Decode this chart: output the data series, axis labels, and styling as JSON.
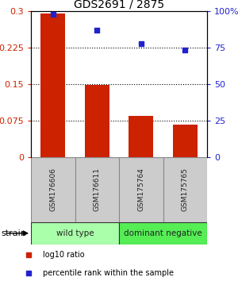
{
  "title": "GDS2691 / 2875",
  "samples": [
    "GSM176606",
    "GSM176611",
    "GSM175764",
    "GSM175765"
  ],
  "log10_ratio": [
    0.295,
    0.148,
    0.085,
    0.068
  ],
  "percentile_rank": [
    98.0,
    87.0,
    78.0,
    73.5
  ],
  "bar_color": "#cc2200",
  "dot_color": "#2222cc",
  "ylim_left": [
    0,
    0.3
  ],
  "ylim_right": [
    0,
    100
  ],
  "yticks_left": [
    0,
    0.075,
    0.15,
    0.225,
    0.3
  ],
  "ytick_labels_left": [
    "0",
    "0.075",
    "0.15",
    "0.225",
    "0.3"
  ],
  "yticks_right": [
    0,
    25,
    50,
    75,
    100
  ],
  "ytick_labels_right": [
    "0",
    "25",
    "50",
    "75",
    "100%"
  ],
  "hlines": [
    0.075,
    0.15,
    0.225
  ],
  "groups": [
    {
      "label": "wild type",
      "indices": [
        0,
        1
      ],
      "color": "#aaffaa"
    },
    {
      "label": "dominant negative",
      "indices": [
        2,
        3
      ],
      "color": "#55ee55"
    }
  ],
  "strain_label": "strain",
  "legend_items": [
    {
      "color": "#cc2200",
      "label": "log10 ratio"
    },
    {
      "color": "#2222cc",
      "label": "percentile rank within the sample"
    }
  ],
  "bar_width": 0.55,
  "title_fontsize": 10,
  "tick_fontsize": 8,
  "sample_fontsize": 6.5,
  "group_fontsize": 7.5,
  "legend_fontsize": 7
}
